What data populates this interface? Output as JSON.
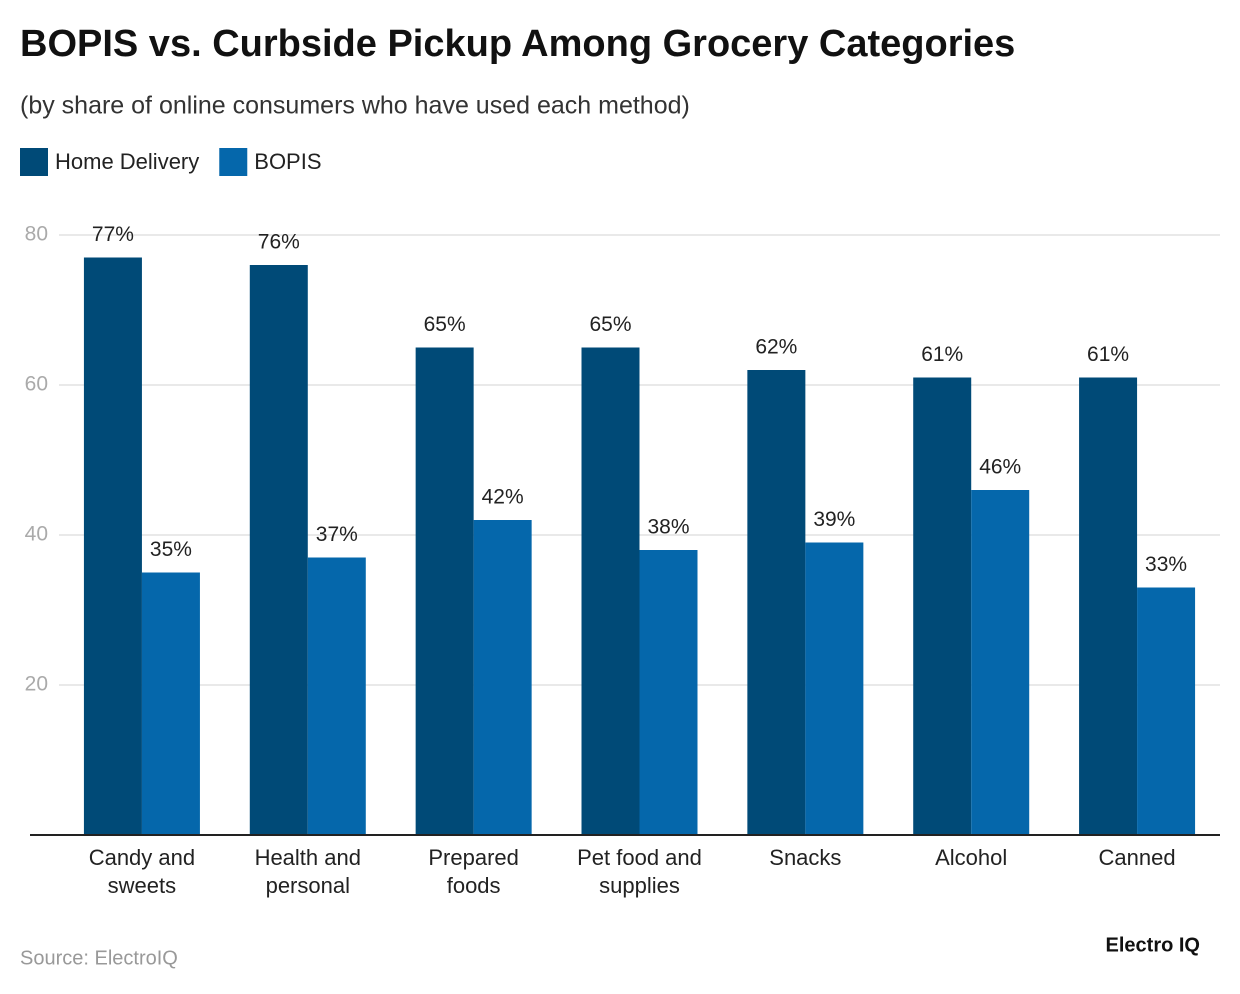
{
  "chart_data": {
    "type": "bar",
    "title": "BOPIS vs. Curbside Pickup Among Grocery Categories",
    "subtitle": "(by share of online consumers who have used each method)",
    "categories": [
      "Candy and sweets",
      "Health and personal",
      "Prepared foods",
      "Pet food and supplies",
      "Snacks",
      "Alcohol",
      "Canned"
    ],
    "series": [
      {
        "name": "Home Delivery",
        "color": "#004a77",
        "values": [
          77,
          76,
          65,
          65,
          62,
          61,
          61
        ],
        "value_labels": [
          "77%",
          "76%",
          "65%",
          "65%",
          "62%",
          "61%",
          "61%"
        ]
      },
      {
        "name": "BOPIS",
        "color": "#0567ab",
        "values": [
          35,
          37,
          42,
          38,
          39,
          46,
          33
        ],
        "value_labels": [
          "35%",
          "37%",
          "42%",
          "38%",
          "39%",
          "46%",
          "33%"
        ]
      }
    ],
    "ylim": [
      0,
      80
    ],
    "yticks": [
      20,
      40,
      60,
      80
    ],
    "grid": true,
    "legend": "top-left",
    "source": "Source: ElectroIQ",
    "brand": "Electro IQ"
  }
}
